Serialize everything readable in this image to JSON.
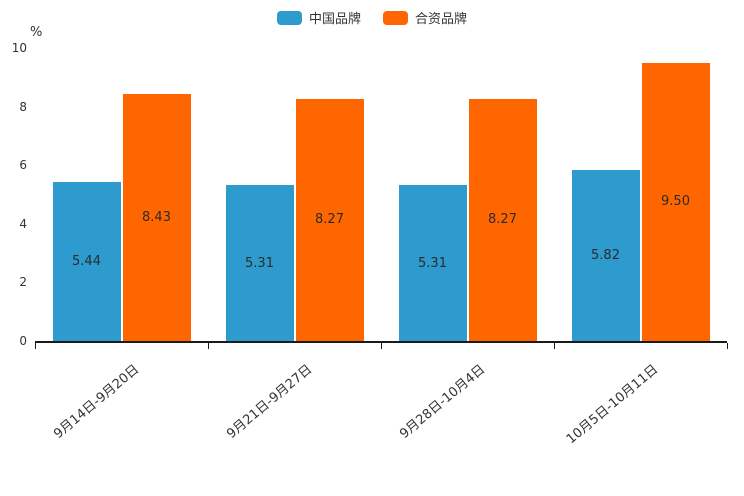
{
  "chart_data": {
    "type": "bar",
    "title": "",
    "categories": [
      "9月14日-9月20日",
      "9月21日-9月27日",
      "9月28日-10月4日",
      "10月5日-10月11日"
    ],
    "series": [
      {
        "name": "中国品牌",
        "color": "#2E9BCF",
        "values": [
          5.44,
          5.31,
          5.31,
          5.82
        ]
      },
      {
        "name": "合资品牌",
        "color": "#FF6600",
        "values": [
          8.43,
          8.27,
          8.27,
          9.5
        ]
      }
    ],
    "xlabel": "",
    "ylabel": "%",
    "ylim": [
      0,
      10
    ],
    "yticks": [
      0,
      2,
      4,
      6,
      8,
      10
    ],
    "grid": false,
    "legend_position": "top-center",
    "value_label_decimals": 2
  }
}
